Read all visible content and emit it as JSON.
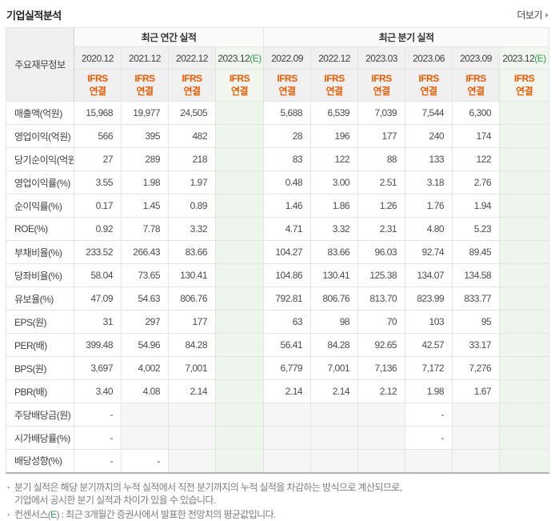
{
  "header": {
    "title": "기업실적분석",
    "more_label": "더보기"
  },
  "colors": {
    "ifrs_orange": "#f25a00",
    "estimate_green": "#2f9d52",
    "estimate_column_bg": "#eef5ec",
    "header_cell_bg": "#f0f0f0",
    "empty_cell_bg": "#f6f6f6"
  },
  "table": {
    "corner_label": "주요재무정보",
    "groups": [
      {
        "label": "최근 연간 실적",
        "col_count": 4
      },
      {
        "label": "최근 분기 실적",
        "col_count": 6
      }
    ],
    "columns": [
      {
        "date": "2020.12",
        "standard": "IFRS",
        "scope": "연결",
        "estimate": false
      },
      {
        "date": "2021.12",
        "standard": "IFRS",
        "scope": "연결",
        "estimate": false
      },
      {
        "date": "2022.12",
        "standard": "IFRS",
        "scope": "연결",
        "estimate": false
      },
      {
        "date": "2023.12",
        "suffix": "(E)",
        "standard": "IFRS",
        "scope": "연결",
        "estimate": true
      },
      {
        "date": "2022.09",
        "standard": "IFRS",
        "scope": "연결",
        "estimate": false
      },
      {
        "date": "2022.12",
        "standard": "IFRS",
        "scope": "연결",
        "estimate": false
      },
      {
        "date": "2023.03",
        "standard": "IFRS",
        "scope": "연결",
        "estimate": false
      },
      {
        "date": "2023.06",
        "standard": "IFRS",
        "scope": "연결",
        "estimate": false
      },
      {
        "date": "2023.09",
        "standard": "IFRS",
        "scope": "연결",
        "estimate": false
      },
      {
        "date": "2023.12",
        "suffix": "(E)",
        "standard": "IFRS",
        "scope": "연결",
        "estimate": true
      }
    ],
    "rows": [
      {
        "label": "매출액(억원)",
        "group_start": false,
        "values": [
          "15,968",
          "19,977",
          "24,505",
          "",
          "5,688",
          "6,539",
          "7,039",
          "7,544",
          "6,300",
          ""
        ]
      },
      {
        "label": "영업이익(억원)",
        "group_start": false,
        "values": [
          "566",
          "395",
          "482",
          "",
          "28",
          "196",
          "177",
          "240",
          "174",
          ""
        ]
      },
      {
        "label": "당기순이익(억원)",
        "group_start": false,
        "values": [
          "27",
          "289",
          "218",
          "",
          "83",
          "122",
          "88",
          "133",
          "122",
          ""
        ]
      },
      {
        "label": "영업이익률(%)",
        "group_start": true,
        "values": [
          "3.55",
          "1.98",
          "1.97",
          "",
          "0.48",
          "3.00",
          "2.51",
          "3.18",
          "2.76",
          ""
        ]
      },
      {
        "label": "순이익률(%)",
        "group_start": false,
        "values": [
          "0.17",
          "1.45",
          "0.89",
          "",
          "1.46",
          "1.86",
          "1.26",
          "1.76",
          "1.94",
          ""
        ]
      },
      {
        "label": "ROE(%)",
        "group_start": false,
        "values": [
          "0.92",
          "7.78",
          "3.32",
          "",
          "4.71",
          "3.32",
          "2.31",
          "4.80",
          "5.23",
          ""
        ]
      },
      {
        "label": "부채비율(%)",
        "group_start": true,
        "values": [
          "233.52",
          "266.43",
          "83.66",
          "",
          "104.27",
          "83.66",
          "96.03",
          "92.74",
          "89.45",
          ""
        ]
      },
      {
        "label": "당좌비율(%)",
        "group_start": false,
        "values": [
          "58.04",
          "73.65",
          "130.41",
          "",
          "104.86",
          "130.41",
          "125.38",
          "134.07",
          "134.58",
          ""
        ]
      },
      {
        "label": "유보율(%)",
        "group_start": false,
        "values": [
          "47.09",
          "54.63",
          "806.76",
          "",
          "792.81",
          "806.76",
          "813.70",
          "823.99",
          "833.77",
          ""
        ]
      },
      {
        "label": "EPS(원)",
        "group_start": true,
        "values": [
          "31",
          "297",
          "177",
          "",
          "63",
          "98",
          "70",
          "103",
          "95",
          ""
        ]
      },
      {
        "label": "PER(배)",
        "group_start": false,
        "values": [
          "399.48",
          "54.96",
          "84.28",
          "",
          "56.41",
          "84.28",
          "92.65",
          "42.57",
          "33.17",
          ""
        ]
      },
      {
        "label": "BPS(원)",
        "group_start": false,
        "values": [
          "3,697",
          "4,002",
          "7,001",
          "",
          "6,779",
          "7,001",
          "7,136",
          "7,172",
          "7,276",
          ""
        ]
      },
      {
        "label": "PBR(배)",
        "group_start": false,
        "values": [
          "3.40",
          "4.08",
          "2.14",
          "",
          "2.14",
          "2.14",
          "2.12",
          "1.98",
          "1.67",
          ""
        ]
      },
      {
        "label": "주당배당금(원)",
        "group_start": true,
        "values": [
          "-",
          "",
          "",
          "",
          "",
          "",
          "",
          "-",
          "",
          ""
        ]
      },
      {
        "label": "시가배당률(%)",
        "group_start": false,
        "values": [
          "-",
          "",
          "",
          "",
          "",
          "",
          "",
          "-",
          "",
          ""
        ]
      },
      {
        "label": "배당성향(%)",
        "group_start": false,
        "values": [
          "-",
          "-",
          "",
          "",
          "",
          "",
          "",
          "",
          "",
          ""
        ]
      }
    ]
  },
  "footnotes": {
    "quarterly_line1": "분기 실적은 해당 분기까지의 누적 실적에서 직전 분기까지의 누적 실적을 차감하는 방식으로 계산되므로,",
    "quarterly_line2": "기업에서 공시한 분기 실적과 차이가 있을 수 있습니다.",
    "consensus_pre": "컨센서스(",
    "consensus_e": "E",
    "consensus_post": ") : 최근 3개월간 증권사에서 발표한 전망치의 평균값입니다."
  }
}
